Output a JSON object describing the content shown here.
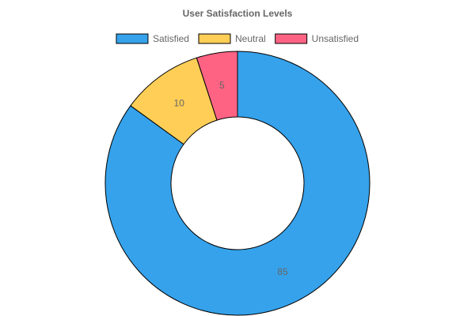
{
  "chart_data": {
    "type": "pie",
    "variant": "doughnut",
    "title": "User Satisfaction Levels",
    "categories": [
      "Satisfied",
      "Neutral",
      "Unsatisfied"
    ],
    "values": [
      85,
      10,
      5
    ],
    "colors": [
      "#36A2EB",
      "#FFCE56",
      "#FF6384"
    ],
    "border_color": "#000000",
    "legend_position": "top",
    "data_labels": [
      "85",
      "10",
      "5"
    ]
  }
}
